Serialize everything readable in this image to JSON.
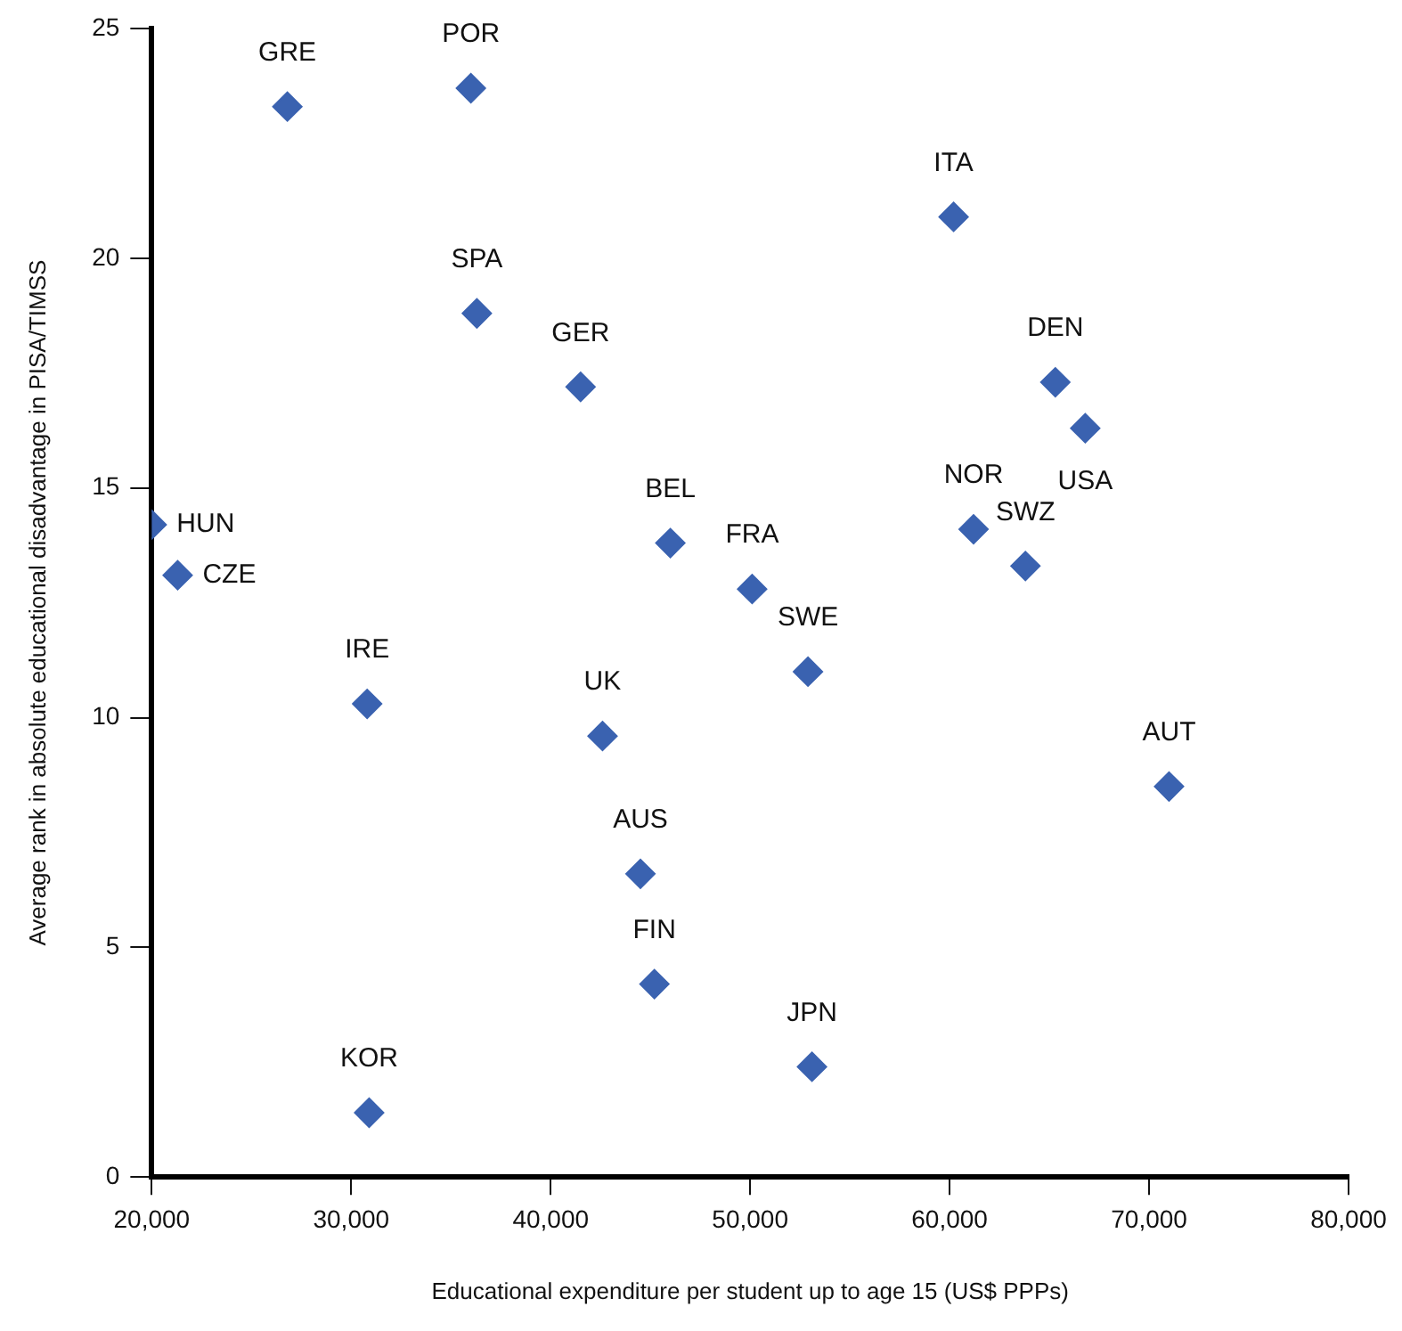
{
  "chart_data": {
    "type": "scatter",
    "xlabel": "Educational expenditure per student up to age 15 (US$ PPPs)",
    "ylabel": "Average rank in absolute educational disadvantage in PISA/TIMSS",
    "marker": "diamond",
    "legend": false,
    "grid": false,
    "xlim": [
      20000,
      80000
    ],
    "xticks": [
      {
        "value": 20000,
        "label": "20,000"
      },
      {
        "value": 30000,
        "label": "30,000"
      },
      {
        "value": 40000,
        "label": "40,000"
      },
      {
        "value": 50000,
        "label": "50,000"
      },
      {
        "value": 60000,
        "label": "60,000"
      },
      {
        "value": 70000,
        "label": "70,000"
      },
      {
        "value": 80000,
        "label": "80,000"
      }
    ],
    "ylim": [
      0,
      25
    ],
    "yticks": [
      0,
      5,
      10,
      15,
      20,
      25
    ],
    "series": [
      {
        "color": "#3a62b0",
        "x": [
          26800,
          36000,
          36300,
          41500,
          20000,
          21300,
          46000,
          60200,
          65300,
          66800,
          61200,
          63800,
          50100,
          30800,
          42600,
          44500,
          45200,
          30900,
          52900,
          71000,
          53100
        ],
        "values": [
          23.3,
          23.7,
          18.8,
          17.2,
          14.2,
          13.1,
          13.8,
          20.9,
          17.3,
          16.3,
          14.1,
          13.3,
          12.8,
          10.3,
          9.6,
          6.6,
          4.2,
          1.4,
          11.0,
          8.5,
          2.4
        ]
      }
    ],
    "annotations": [
      {
        "text": "GRE",
        "x": 26800,
        "y": 23.3
      },
      {
        "text": "POR",
        "x": 36000,
        "y": 23.7
      },
      {
        "text": "SPA",
        "x": 36300,
        "y": 18.8
      },
      {
        "text": "GER",
        "x": 41500,
        "y": 17.2
      },
      {
        "text": "HUN",
        "x": 20000,
        "y": 14.2
      },
      {
        "text": "CZE",
        "x": 21300,
        "y": 13.1
      },
      {
        "text": "BEL",
        "x": 46000,
        "y": 13.8
      },
      {
        "text": "ITA",
        "x": 60200,
        "y": 20.9
      },
      {
        "text": "DEN",
        "x": 65300,
        "y": 17.3
      },
      {
        "text": "USA",
        "x": 66800,
        "y": 16.3
      },
      {
        "text": "NOR",
        "x": 61200,
        "y": 14.1
      },
      {
        "text": "SWZ",
        "x": 63800,
        "y": 13.3
      },
      {
        "text": "FRA",
        "x": 50100,
        "y": 12.8
      },
      {
        "text": "IRE",
        "x": 30800,
        "y": 10.3
      },
      {
        "text": "UK",
        "x": 42600,
        "y": 9.6
      },
      {
        "text": "AUS",
        "x": 44500,
        "y": 6.6
      },
      {
        "text": "FIN",
        "x": 45200,
        "y": 4.2
      },
      {
        "text": "KOR",
        "x": 30900,
        "y": 1.4
      },
      {
        "text": "SWE",
        "x": 52900,
        "y": 11.0
      },
      {
        "text": "AUT",
        "x": 71000,
        "y": 8.5
      },
      {
        "text": "JPN",
        "x": 53100,
        "y": 2.4
      }
    ]
  }
}
